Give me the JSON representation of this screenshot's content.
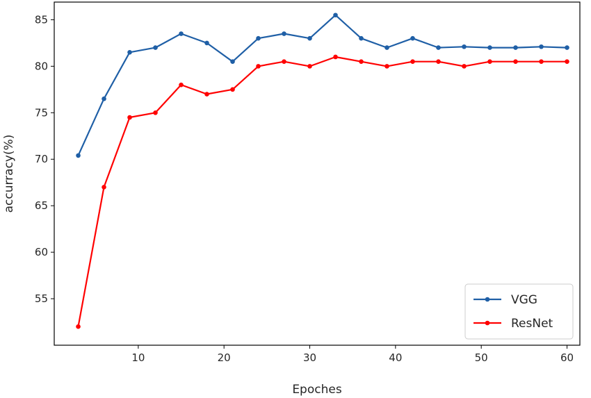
{
  "chart_data": {
    "type": "line",
    "xlabel": "Epoches",
    "ylabel": "accurracy(%)",
    "xlim": [
      0.2,
      61.5
    ],
    "ylim": [
      50.0,
      86.9
    ],
    "xticks": [
      10,
      20,
      30,
      40,
      50,
      60
    ],
    "yticks": [
      55,
      60,
      65,
      70,
      75,
      80,
      85
    ],
    "grid": false,
    "legend_position": "lower-right",
    "x": [
      3,
      6,
      9,
      12,
      15,
      18,
      21,
      24,
      27,
      30,
      33,
      36,
      39,
      42,
      45,
      48,
      51,
      54,
      57,
      60
    ],
    "series": [
      {
        "name": "VGG",
        "color": "#1f5fa6",
        "values": [
          70.4,
          76.5,
          81.5,
          82.0,
          83.5,
          82.5,
          80.5,
          83.0,
          83.5,
          83.0,
          85.5,
          83.0,
          82.0,
          83.0,
          82.0,
          82.1,
          82.0,
          82.0,
          82.1,
          82.0
        ]
      },
      {
        "name": "ResNet",
        "color": "#ff0000",
        "values": [
          52.0,
          67.0,
          74.5,
          75.0,
          78.0,
          77.0,
          77.5,
          80.0,
          80.5,
          80.0,
          81.0,
          80.5,
          80.0,
          80.5,
          80.5,
          80.0,
          80.5,
          80.5,
          80.5,
          80.5
        ]
      }
    ]
  }
}
